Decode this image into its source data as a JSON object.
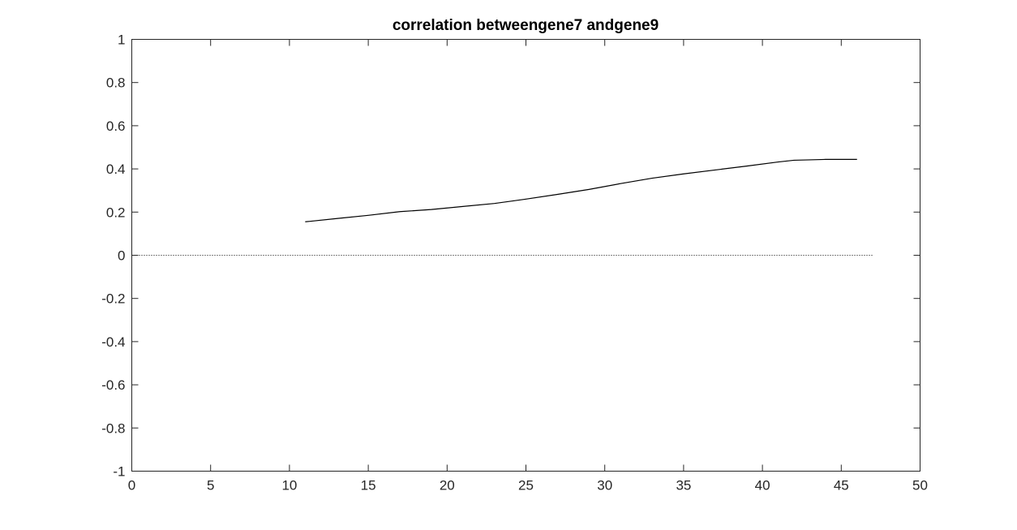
{
  "chart_data": {
    "type": "line",
    "title": "correlation betweengene7 andgene9",
    "xlabel": "",
    "ylabel": "",
    "xlim": [
      0,
      50
    ],
    "ylim": [
      -1,
      1
    ],
    "x_ticks": [
      0,
      5,
      10,
      15,
      20,
      25,
      30,
      35,
      40,
      45,
      50
    ],
    "y_ticks": [
      -1,
      -0.8,
      -0.6,
      -0.4,
      -0.2,
      0,
      0.2,
      0.4,
      0.6,
      0.8,
      1
    ],
    "x_tick_labels": [
      "0",
      "5",
      "10",
      "15",
      "20",
      "25",
      "30",
      "35",
      "40",
      "45",
      "50"
    ],
    "y_tick_labels": [
      "-1",
      "-0.8",
      "-0.6",
      "-0.4",
      "-0.2",
      "0",
      "0.2",
      "0.4",
      "0.6",
      "0.8",
      "1"
    ],
    "grid": false,
    "series": [
      {
        "style": "solid",
        "color": "#000000",
        "x": [
          11,
          13,
          15,
          17,
          19,
          21,
          23,
          25,
          27,
          29,
          31,
          33,
          35,
          37,
          39,
          41,
          42,
          43,
          44,
          45,
          46
        ],
        "y": [
          0.155,
          0.17,
          0.185,
          0.202,
          0.212,
          0.226,
          0.24,
          0.26,
          0.282,
          0.305,
          0.332,
          0.357,
          0.377,
          0.395,
          0.413,
          0.432,
          0.44,
          0.442,
          0.444,
          0.444,
          0.444
        ]
      },
      {
        "style": "dotted",
        "color": "#000000",
        "x": [
          0,
          47
        ],
        "y": [
          0,
          0
        ]
      }
    ]
  }
}
